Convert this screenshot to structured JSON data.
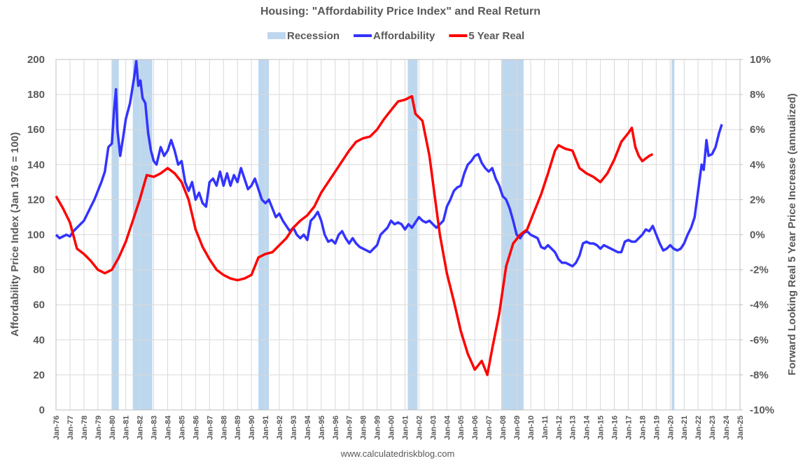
{
  "chart_data": {
    "type": "line",
    "title": "Housing: \"Affordability Price Index\" and Real Return",
    "ylabel": "Affordability Price Index (Jan 1976 = 100)",
    "y2label": "Forward Looking Real 5 Year Price Increase (annualized)",
    "source": "www.calculatedriskblog.com",
    "grid": true,
    "legend": "top",
    "xlim": [
      1976,
      2025
    ],
    "ylim": [
      0,
      200
    ],
    "yticks": [
      0,
      20,
      40,
      60,
      80,
      100,
      120,
      140,
      160,
      180,
      200
    ],
    "y2lim": [
      -10,
      10
    ],
    "y2ticks": [
      {
        "value": -10,
        "label": "-10%"
      },
      {
        "value": -8,
        "label": "-8%"
      },
      {
        "value": -6,
        "label": "-6%"
      },
      {
        "value": -4,
        "label": "-4%"
      },
      {
        "value": -2,
        "label": "-2%"
      },
      {
        "value": 0,
        "label": "0%"
      },
      {
        "value": 2,
        "label": "2%"
      },
      {
        "value": 4,
        "label": "4%"
      },
      {
        "value": 6,
        "label": "6%"
      },
      {
        "value": 8,
        "label": "8%"
      },
      {
        "value": 10,
        "label": "10%"
      }
    ],
    "xticks": [
      {
        "value": 1976,
        "label": "Jan-76"
      },
      {
        "value": 1977,
        "label": "Jan-77"
      },
      {
        "value": 1978,
        "label": "Jan-78"
      },
      {
        "value": 1979,
        "label": "Jan-79"
      },
      {
        "value": 1980,
        "label": "Jan-80"
      },
      {
        "value": 1981,
        "label": "Jan-81"
      },
      {
        "value": 1982,
        "label": "Jan-82"
      },
      {
        "value": 1983,
        "label": "Jan-83"
      },
      {
        "value": 1984,
        "label": "Jan-84"
      },
      {
        "value": 1985,
        "label": "Jan-85"
      },
      {
        "value": 1986,
        "label": "Jan-86"
      },
      {
        "value": 1987,
        "label": "Jan-87"
      },
      {
        "value": 1988,
        "label": "Jan-88"
      },
      {
        "value": 1989,
        "label": "Jan-89"
      },
      {
        "value": 1990,
        "label": "Jan-90"
      },
      {
        "value": 1991,
        "label": "Jan-91"
      },
      {
        "value": 1992,
        "label": "Jan-92"
      },
      {
        "value": 1993,
        "label": "Jan-93"
      },
      {
        "value": 1994,
        "label": "Jan-94"
      },
      {
        "value": 1995,
        "label": "Jan-95"
      },
      {
        "value": 1996,
        "label": "Jan-96"
      },
      {
        "value": 1997,
        "label": "Jan-97"
      },
      {
        "value": 1998,
        "label": "Jan-98"
      },
      {
        "value": 1999,
        "label": "Jan-99"
      },
      {
        "value": 2000,
        "label": "Jan-00"
      },
      {
        "value": 2001,
        "label": "Jan-01"
      },
      {
        "value": 2002,
        "label": "Jan-02"
      },
      {
        "value": 2003,
        "label": "Jan-03"
      },
      {
        "value": 2004,
        "label": "Jan-04"
      },
      {
        "value": 2005,
        "label": "Jan-05"
      },
      {
        "value": 2006,
        "label": "Jan-06"
      },
      {
        "value": 2007,
        "label": "Jan-07"
      },
      {
        "value": 2008,
        "label": "Jan-08"
      },
      {
        "value": 2009,
        "label": "Jan-09"
      },
      {
        "value": 2010,
        "label": "Jan-10"
      },
      {
        "value": 2011,
        "label": "Jan-11"
      },
      {
        "value": 2012,
        "label": "Jan-12"
      },
      {
        "value": 2013,
        "label": "Jan-13"
      },
      {
        "value": 2014,
        "label": "Jan-14"
      },
      {
        "value": 2015,
        "label": "Jan-15"
      },
      {
        "value": 2016,
        "label": "Jan-16"
      },
      {
        "value": 2017,
        "label": "Jan-17"
      },
      {
        "value": 2018,
        "label": "Jan-18"
      },
      {
        "value": 2019,
        "label": "Jan-19"
      },
      {
        "value": 2020,
        "label": "Jan-20"
      },
      {
        "value": 2021,
        "label": "Jan-21"
      },
      {
        "value": 2022,
        "label": "Jan-22"
      },
      {
        "value": 2023,
        "label": "Jan-23"
      },
      {
        "value": 2024,
        "label": "Jan-24"
      },
      {
        "value": 2025,
        "label": "Jan-25"
      }
    ],
    "recession": {
      "name": "Recession",
      "color": "#bdd7ee",
      "periods": [
        [
          1980.0,
          1980.5
        ],
        [
          1981.5,
          1982.9
        ],
        [
          1990.5,
          1991.25
        ],
        [
          2001.2,
          2001.9
        ],
        [
          2007.9,
          2009.5
        ],
        [
          2020.1,
          2020.3
        ]
      ]
    },
    "series": [
      {
        "name": "Affordability",
        "color": "#3333ff",
        "axis": "y",
        "x": [
          1976.0,
          1976.25,
          1976.5,
          1976.75,
          1977.0,
          1977.25,
          1977.5,
          1977.75,
          1978.0,
          1978.25,
          1978.5,
          1978.75,
          1979.0,
          1979.25,
          1979.5,
          1979.75,
          1980.0,
          1980.15,
          1980.3,
          1980.4,
          1980.6,
          1980.8,
          1981.0,
          1981.3,
          1981.6,
          1981.75,
          1981.9,
          1982.05,
          1982.2,
          1982.4,
          1982.6,
          1982.8,
          1983.0,
          1983.2,
          1983.5,
          1983.75,
          1984.0,
          1984.25,
          1984.5,
          1984.75,
          1985.0,
          1985.25,
          1985.5,
          1985.75,
          1986.0,
          1986.25,
          1986.5,
          1986.75,
          1987.0,
          1987.25,
          1987.5,
          1987.75,
          1988.0,
          1988.25,
          1988.5,
          1988.75,
          1989.0,
          1989.25,
          1989.5,
          1989.75,
          1990.0,
          1990.25,
          1990.5,
          1990.75,
          1991.0,
          1991.25,
          1991.5,
          1991.75,
          1992.0,
          1992.25,
          1992.5,
          1992.75,
          1993.0,
          1993.25,
          1993.5,
          1993.75,
          1994.0,
          1994.25,
          1994.5,
          1994.75,
          1995.0,
          1995.25,
          1995.5,
          1995.75,
          1996.0,
          1996.25,
          1996.5,
          1996.75,
          1997.0,
          1997.25,
          1997.5,
          1997.75,
          1998.0,
          1998.25,
          1998.5,
          1998.75,
          1999.0,
          1999.25,
          1999.5,
          1999.75,
          2000.0,
          2000.25,
          2000.5,
          2000.75,
          2001.0,
          2001.25,
          2001.5,
          2001.75,
          2002.0,
          2002.25,
          2002.5,
          2002.75,
          2003.0,
          2003.25,
          2003.5,
          2003.75,
          2004.0,
          2004.25,
          2004.5,
          2004.75,
          2005.0,
          2005.25,
          2005.5,
          2005.75,
          2006.0,
          2006.25,
          2006.5,
          2006.75,
          2007.0,
          2007.25,
          2007.5,
          2007.75,
          2008.0,
          2008.25,
          2008.5,
          2008.75,
          2009.0,
          2009.25,
          2009.5,
          2009.75,
          2010.0,
          2010.25,
          2010.5,
          2010.75,
          2011.0,
          2011.25,
          2011.5,
          2011.75,
          2012.0,
          2012.25,
          2012.5,
          2012.75,
          2013.0,
          2013.25,
          2013.5,
          2013.75,
          2014.0,
          2014.25,
          2014.5,
          2014.75,
          2015.0,
          2015.25,
          2015.5,
          2015.75,
          2016.0,
          2016.25,
          2016.5,
          2016.75,
          2017.0,
          2017.25,
          2017.5,
          2017.75,
          2018.0,
          2018.25,
          2018.5,
          2018.75,
          2019.0,
          2019.25,
          2019.5,
          2019.75,
          2020.0,
          2020.25,
          2020.5,
          2020.75,
          2021.0,
          2021.25,
          2021.5,
          2021.75,
          2022.0,
          2022.25,
          2022.4,
          2022.6,
          2022.75,
          2023.0,
          2023.25,
          2023.5,
          2023.7
        ],
        "values": [
          100,
          98,
          99,
          100,
          99,
          102,
          104,
          106,
          108,
          112,
          116,
          120,
          125,
          130,
          136,
          150,
          152,
          170,
          183,
          160,
          145,
          155,
          166,
          175,
          190,
          199,
          185,
          188,
          178,
          175,
          158,
          148,
          142,
          140,
          150,
          145,
          148,
          154,
          148,
          140,
          142,
          130,
          125,
          130,
          120,
          124,
          118,
          116,
          130,
          132,
          128,
          136,
          128,
          135,
          128,
          134,
          130,
          138,
          132,
          126,
          128,
          132,
          126,
          120,
          118,
          120,
          115,
          110,
          112,
          108,
          105,
          102,
          104,
          100,
          98,
          100,
          97,
          108,
          110,
          113,
          108,
          100,
          96,
          97,
          95,
          100,
          102,
          98,
          95,
          98,
          95,
          93,
          92,
          91,
          90,
          92,
          94,
          100,
          102,
          104,
          108,
          106,
          107,
          106,
          103,
          106,
          104,
          107,
          110,
          108,
          107,
          108,
          106,
          104,
          106,
          108,
          116,
          120,
          125,
          127,
          128,
          135,
          140,
          142,
          145,
          146,
          141,
          138,
          136,
          138,
          132,
          128,
          122,
          120,
          115,
          108,
          100,
          98,
          101,
          102,
          100,
          99,
          98,
          93,
          92,
          94,
          92,
          90,
          86,
          84,
          84,
          83,
          82,
          84,
          88,
          95,
          96,
          95,
          95,
          94,
          92,
          94,
          93,
          92,
          91,
          90,
          90,
          96,
          97,
          96,
          96,
          98,
          100,
          103,
          102,
          105,
          100,
          95,
          91,
          92,
          94,
          92,
          91,
          92,
          95,
          100,
          104,
          110,
          125,
          140,
          137,
          154,
          145,
          146,
          150,
          158,
          163
        ]
      },
      {
        "name": "5 Year Real",
        "color": "#ff0000",
        "axis": "y2",
        "x": [
          1976.0,
          1976.5,
          1977.0,
          1977.5,
          1978.0,
          1978.5,
          1979.0,
          1979.5,
          1980.0,
          1980.5,
          1981.0,
          1981.5,
          1982.0,
          1982.5,
          1983.0,
          1983.5,
          1984.0,
          1984.5,
          1985.0,
          1985.5,
          1986.0,
          1986.5,
          1987.0,
          1987.5,
          1988.0,
          1988.5,
          1989.0,
          1989.5,
          1990.0,
          1990.5,
          1991.0,
          1991.5,
          1992.0,
          1992.5,
          1993.0,
          1993.5,
          1994.0,
          1994.5,
          1995.0,
          1995.5,
          1996.0,
          1996.5,
          1997.0,
          1997.5,
          1998.0,
          1998.5,
          1999.0,
          1999.5,
          2000.0,
          2000.5,
          2001.0,
          2001.5,
          2001.75,
          2002.25,
          2002.75,
          2003.25,
          2003.5,
          2004.0,
          2004.5,
          2005.0,
          2005.5,
          2006.0,
          2006.5,
          2006.9,
          2007.25,
          2007.75,
          2008.25,
          2008.75,
          2009.25,
          2009.75,
          2010.25,
          2010.75,
          2011.25,
          2011.75,
          2012.0,
          2012.5,
          2013.0,
          2013.5,
          2014.0,
          2014.5,
          2015.0,
          2015.5,
          2016.0,
          2016.5,
          2017.0,
          2017.25,
          2017.5,
          2017.75,
          2018.0,
          2018.5,
          2018.75
        ],
        "values": [
          2.2,
          1.5,
          0.7,
          -0.8,
          -1.1,
          -1.5,
          -2.0,
          -2.2,
          -2.0,
          -1.3,
          -0.4,
          0.8,
          2.0,
          3.4,
          3.3,
          3.5,
          3.8,
          3.5,
          3.0,
          2.0,
          0.3,
          -0.7,
          -1.4,
          -2.0,
          -2.3,
          -2.5,
          -2.6,
          -2.5,
          -2.3,
          -1.3,
          -1.1,
          -1.0,
          -0.6,
          -0.2,
          0.4,
          0.8,
          1.1,
          1.6,
          2.4,
          3.0,
          3.6,
          4.2,
          4.8,
          5.3,
          5.5,
          5.6,
          6.0,
          6.6,
          7.1,
          7.6,
          7.7,
          7.9,
          6.9,
          6.5,
          4.5,
          1.5,
          0.0,
          -2.2,
          -3.8,
          -5.5,
          -6.8,
          -7.7,
          -7.2,
          -8.0,
          -6.5,
          -4.5,
          -1.8,
          -0.5,
          0.0,
          0.3,
          1.3,
          2.3,
          3.5,
          4.8,
          5.1,
          4.9,
          4.8,
          3.8,
          3.5,
          3.3,
          3.0,
          3.5,
          4.3,
          5.3,
          5.8,
          6.1,
          5.0,
          4.5,
          4.2,
          4.5,
          4.6
        ]
      }
    ]
  }
}
